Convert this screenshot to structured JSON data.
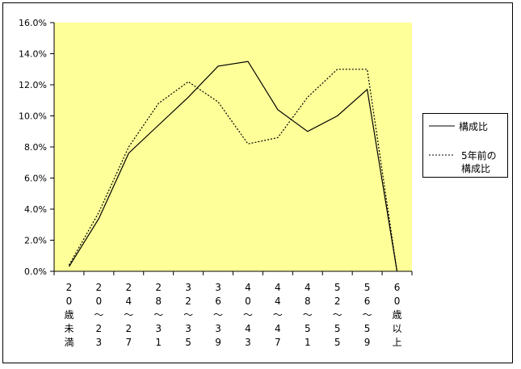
{
  "chart_data": {
    "type": "line",
    "title": "",
    "xlabel": "",
    "ylabel": "",
    "ylim": [
      0,
      16
    ],
    "yticks": [
      "0.0%",
      "2.0%",
      "4.0%",
      "6.0%",
      "8.0%",
      "10.0%",
      "12.0%",
      "14.0%",
      "16.0%"
    ],
    "categories": [
      "20歳未満",
      "20～23",
      "24～27",
      "28～31",
      "32～35",
      "36～39",
      "40～43",
      "44～47",
      "48～51",
      "52～55",
      "56～59",
      "60歳以上"
    ],
    "category_chars": [
      [
        "2",
        "0",
        "歳",
        "未",
        "満"
      ],
      [
        "2",
        "0",
        "～",
        "2",
        "3"
      ],
      [
        "2",
        "4",
        "～",
        "2",
        "7"
      ],
      [
        "2",
        "8",
        "～",
        "3",
        "1"
      ],
      [
        "3",
        "2",
        "～",
        "3",
        "5"
      ],
      [
        "3",
        "6",
        "～",
        "3",
        "9"
      ],
      [
        "4",
        "0",
        "～",
        "4",
        "3"
      ],
      [
        "4",
        "4",
        "～",
        "4",
        "7"
      ],
      [
        "4",
        "8",
        "～",
        "5",
        "1"
      ],
      [
        "5",
        "2",
        "～",
        "5",
        "5"
      ],
      [
        "5",
        "6",
        "～",
        "5",
        "9"
      ],
      [
        "6",
        "0",
        "歳",
        "以",
        "上"
      ]
    ],
    "series": [
      {
        "name": "構成比",
        "style": "solid",
        "values": [
          0.3,
          3.4,
          7.6,
          9.4,
          11.2,
          13.2,
          13.5,
          10.4,
          9.0,
          10.0,
          11.7,
          0.0
        ]
      },
      {
        "name": "5年前の構成比",
        "name_lines": [
          "5年前の",
          "構成比"
        ],
        "style": "dotted",
        "values": [
          0.4,
          3.8,
          8.0,
          10.8,
          12.2,
          10.9,
          8.2,
          8.6,
          11.2,
          13.0,
          13.0,
          0.0
        ]
      }
    ],
    "grid": false,
    "legend_position": "right",
    "colors": {
      "plot_background": "#FFFF99",
      "line": "#000000"
    }
  }
}
